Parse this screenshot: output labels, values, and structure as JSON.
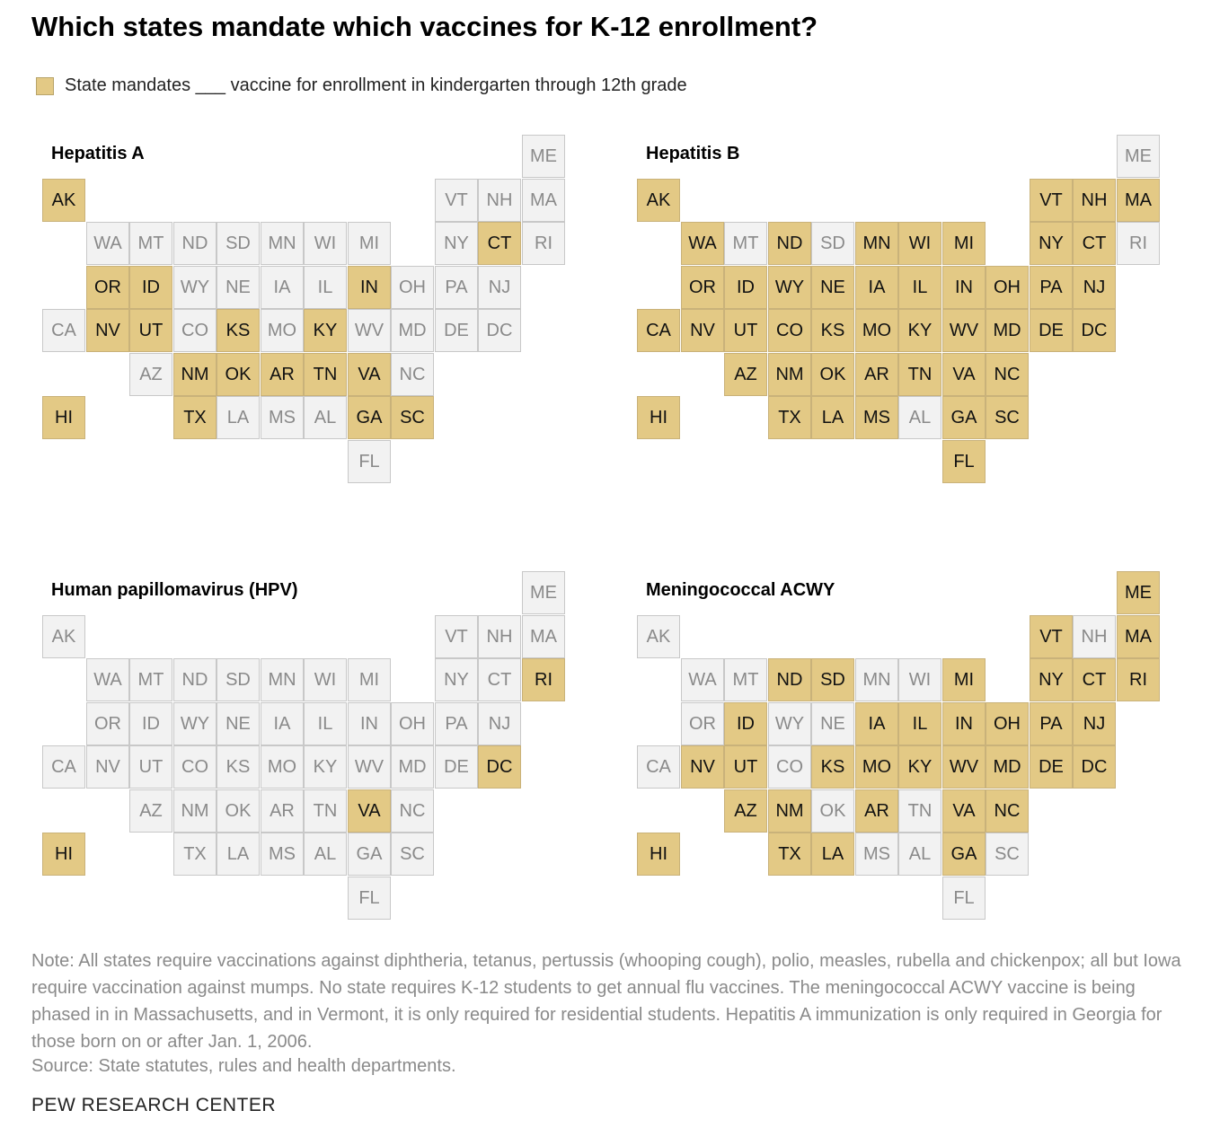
{
  "title": "Which states mandate which vaccines for K-12 enrollment?",
  "legend": {
    "label": "State mandates ___ vaccine for enrollment in kindergarten through 12th grade",
    "color": "#e3c985",
    "off_color": "#f2f2f2"
  },
  "chart_data": {
    "type": "tile-map",
    "states": [
      {
        "code": "ME",
        "row": 0,
        "col": 11
      },
      {
        "code": "AK",
        "row": 1,
        "col": 0
      },
      {
        "code": "VT",
        "row": 1,
        "col": 9
      },
      {
        "code": "NH",
        "row": 1,
        "col": 10
      },
      {
        "code": "MA",
        "row": 1,
        "col": 11
      },
      {
        "code": "WA",
        "row": 2,
        "col": 1
      },
      {
        "code": "MT",
        "row": 2,
        "col": 2
      },
      {
        "code": "ND",
        "row": 2,
        "col": 3
      },
      {
        "code": "SD",
        "row": 2,
        "col": 4
      },
      {
        "code": "MN",
        "row": 2,
        "col": 5
      },
      {
        "code": "WI",
        "row": 2,
        "col": 6
      },
      {
        "code": "MI",
        "row": 2,
        "col": 7
      },
      {
        "code": "NY",
        "row": 2,
        "col": 9
      },
      {
        "code": "CT",
        "row": 2,
        "col": 10
      },
      {
        "code": "RI",
        "row": 2,
        "col": 11
      },
      {
        "code": "OR",
        "row": 3,
        "col": 1
      },
      {
        "code": "ID",
        "row": 3,
        "col": 2
      },
      {
        "code": "WY",
        "row": 3,
        "col": 3
      },
      {
        "code": "NE",
        "row": 3,
        "col": 4
      },
      {
        "code": "IA",
        "row": 3,
        "col": 5
      },
      {
        "code": "IL",
        "row": 3,
        "col": 6
      },
      {
        "code": "IN",
        "row": 3,
        "col": 7
      },
      {
        "code": "OH",
        "row": 3,
        "col": 8
      },
      {
        "code": "PA",
        "row": 3,
        "col": 9
      },
      {
        "code": "NJ",
        "row": 3,
        "col": 10
      },
      {
        "code": "CA",
        "row": 4,
        "col": 0
      },
      {
        "code": "NV",
        "row": 4,
        "col": 1
      },
      {
        "code": "UT",
        "row": 4,
        "col": 2
      },
      {
        "code": "CO",
        "row": 4,
        "col": 3
      },
      {
        "code": "KS",
        "row": 4,
        "col": 4
      },
      {
        "code": "MO",
        "row": 4,
        "col": 5
      },
      {
        "code": "KY",
        "row": 4,
        "col": 6
      },
      {
        "code": "WV",
        "row": 4,
        "col": 7
      },
      {
        "code": "MD",
        "row": 4,
        "col": 8
      },
      {
        "code": "DE",
        "row": 4,
        "col": 9
      },
      {
        "code": "DC",
        "row": 4,
        "col": 10
      },
      {
        "code": "AZ",
        "row": 5,
        "col": 2
      },
      {
        "code": "NM",
        "row": 5,
        "col": 3
      },
      {
        "code": "OK",
        "row": 5,
        "col": 4
      },
      {
        "code": "AR",
        "row": 5,
        "col": 5
      },
      {
        "code": "TN",
        "row": 5,
        "col": 6
      },
      {
        "code": "VA",
        "row": 5,
        "col": 7
      },
      {
        "code": "NC",
        "row": 5,
        "col": 8
      },
      {
        "code": "HI",
        "row": 6,
        "col": 0
      },
      {
        "code": "TX",
        "row": 6,
        "col": 3
      },
      {
        "code": "LA",
        "row": 6,
        "col": 4
      },
      {
        "code": "MS",
        "row": 6,
        "col": 5
      },
      {
        "code": "AL",
        "row": 6,
        "col": 6
      },
      {
        "code": "GA",
        "row": 6,
        "col": 7
      },
      {
        "code": "SC",
        "row": 6,
        "col": 8
      },
      {
        "code": "FL",
        "row": 7,
        "col": 7
      }
    ],
    "maps": [
      {
        "title": "Hepatitis A",
        "mandated": [
          "AK",
          "CT",
          "OR",
          "ID",
          "IN",
          "NV",
          "UT",
          "KS",
          "KY",
          "NM",
          "OK",
          "AR",
          "TN",
          "VA",
          "HI",
          "TX",
          "GA",
          "SC"
        ]
      },
      {
        "title": "Hepatitis B",
        "mandated": [
          "AK",
          "VT",
          "NH",
          "MA",
          "WA",
          "ND",
          "MN",
          "WI",
          "MI",
          "NY",
          "CT",
          "OR",
          "ID",
          "WY",
          "NE",
          "IA",
          "IL",
          "IN",
          "OH",
          "PA",
          "NJ",
          "CA",
          "NV",
          "UT",
          "CO",
          "KS",
          "MO",
          "KY",
          "WV",
          "MD",
          "DE",
          "DC",
          "AZ",
          "NM",
          "OK",
          "AR",
          "TN",
          "VA",
          "NC",
          "HI",
          "TX",
          "LA",
          "MS",
          "GA",
          "SC",
          "FL"
        ]
      },
      {
        "title": "Human papillomavirus (HPV)",
        "mandated": [
          "RI",
          "DC",
          "VA",
          "HI"
        ]
      },
      {
        "title": "Meningococcal ACWY",
        "mandated": [
          "ME",
          "VT",
          "MA",
          "ND",
          "SD",
          "MI",
          "NY",
          "CT",
          "RI",
          "ID",
          "IA",
          "IL",
          "IN",
          "OH",
          "PA",
          "NJ",
          "NV",
          "UT",
          "KS",
          "MO",
          "KY",
          "WV",
          "MD",
          "DE",
          "DC",
          "AZ",
          "NM",
          "AR",
          "VA",
          "NC",
          "HI",
          "TX",
          "LA",
          "GA"
        ]
      }
    ]
  },
  "note": "Note: All states require vaccinations against diphtheria, tetanus, pertussis (whooping cough), polio, measles, rubella and chickenpox; all but Iowa require vaccination against mumps. No state requires K-12 students to get annual flu vaccines. The meningococcal ACWY vaccine is being phased in in Massachusetts, and in Vermont, it is only required for residential students. Hepatitis A immunization is only required in Georgia for those born on or after Jan. 1, 2006.",
  "source": "Source: State statutes, rules and health departments.",
  "credit": "PEW RESEARCH CENTER"
}
